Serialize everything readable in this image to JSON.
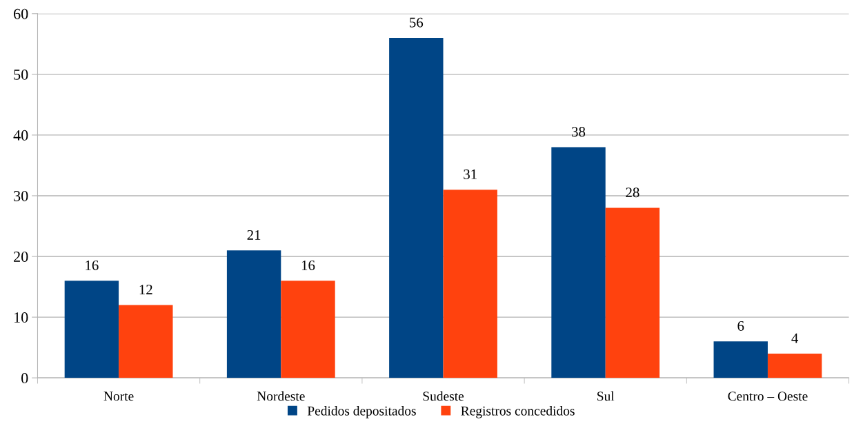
{
  "chart_data": {
    "type": "bar",
    "categories": [
      "Norte",
      "Nordeste",
      "Sudeste",
      "Sul",
      "Centro – Oeste"
    ],
    "series": [
      {
        "name": "Pedidos depositados",
        "color": "#004586",
        "values": [
          16,
          21,
          56,
          38,
          6
        ]
      },
      {
        "name": "Registros concedidos",
        "color": "#ff420e",
        "values": [
          12,
          16,
          31,
          28,
          4
        ]
      }
    ],
    "ylim": [
      0,
      60
    ],
    "yticks": [
      0,
      10,
      20,
      30,
      40,
      50,
      60
    ],
    "grid": "y",
    "legend": "bottom",
    "data_labels": true
  }
}
